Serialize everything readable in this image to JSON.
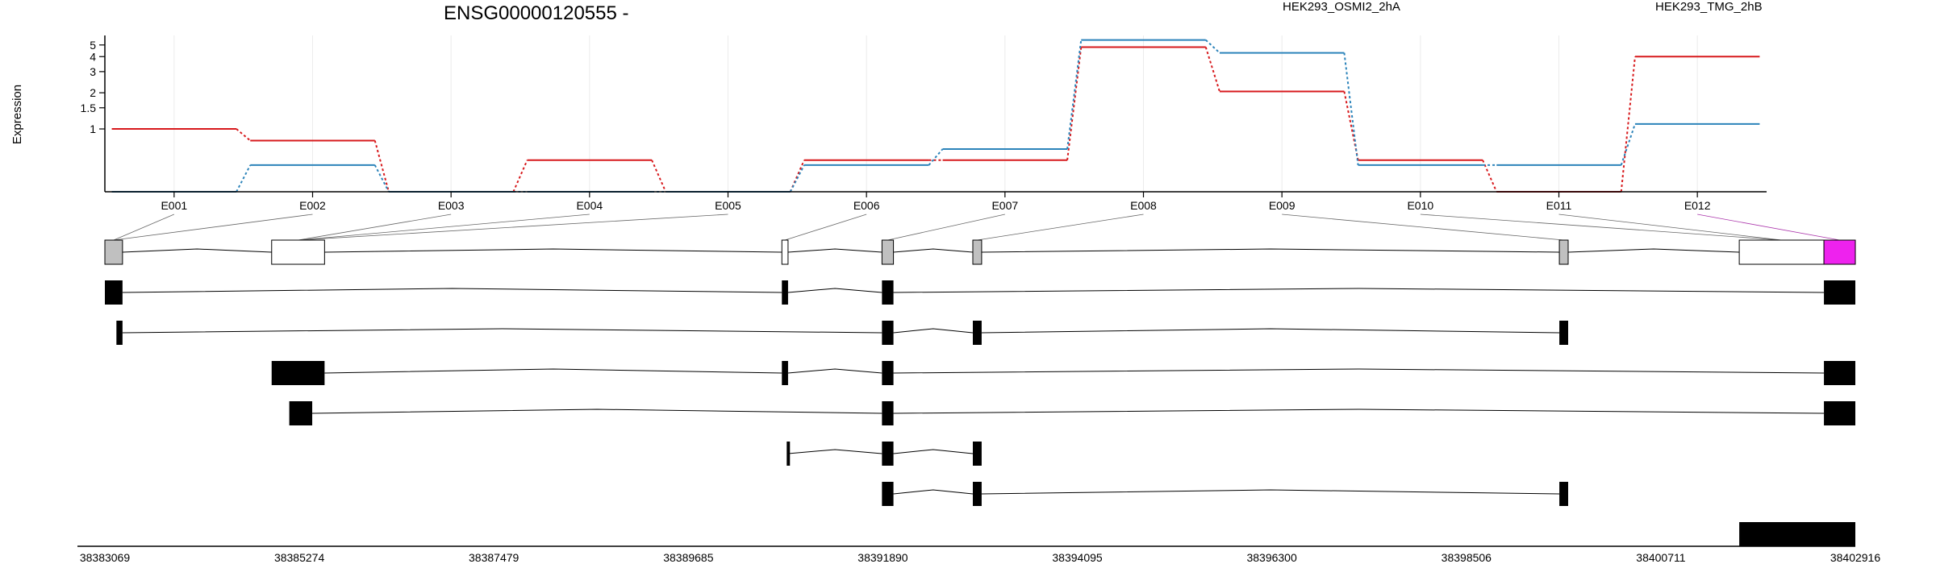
{
  "chart_data": {
    "type": "line",
    "title": "ENSG00000120555 -",
    "ylabel": "Expression",
    "y_scale": "log",
    "ylim": [
      0.3,
      6
    ],
    "y_ticks": [
      {
        "value": 1,
        "label": "1"
      },
      {
        "value": 1.5,
        "label": "1.5"
      },
      {
        "value": 2,
        "label": "2"
      },
      {
        "value": 3,
        "label": "3"
      },
      {
        "value": 4,
        "label": "4"
      },
      {
        "value": 5,
        "label": "5"
      }
    ],
    "categories": [
      "E001",
      "E002",
      "E003",
      "E004",
      "E005",
      "E006",
      "E007",
      "E008",
      "E009",
      "E010",
      "E011",
      "E012"
    ],
    "series": [
      {
        "name": "HEK293_OSMI2_2hA",
        "color": "#d7191c",
        "values": [
          1.0,
          0.8,
          0.3,
          0.55,
          0.3,
          0.55,
          0.55,
          4.8,
          2.05,
          0.55,
          0.3,
          4.0
        ]
      },
      {
        "name": "HEK293_TMG_2hB",
        "color": "#2b83ba",
        "values": [
          0.3,
          0.5,
          0.3,
          0.3,
          0.3,
          0.5,
          0.68,
          5.5,
          4.3,
          0.5,
          0.5,
          1.1
        ]
      }
    ],
    "grid": true,
    "legend_position": "top",
    "gene_structure": {
      "coordinate_range": [
        38383069,
        38402916
      ],
      "coordinate_ticks": [
        "38383069",
        "38385274",
        "38387479",
        "38389685",
        "38391890",
        "38394095",
        "38396300",
        "38398506",
        "38400711",
        "38402916"
      ],
      "exon_colors": {
        "default": "#ffffff",
        "expressed": "#c0c0c0",
        "highlighted": "#ee22ee",
        "transcript": "#000000"
      },
      "exon_bins": [
        {
          "id": "E001",
          "start": 38383069,
          "end": 38383269,
          "fill": "expressed"
        },
        {
          "id": "E002",
          "start": 38384960,
          "end": 38385560,
          "fill": "default"
        },
        {
          "id": "E003",
          "start": 38390745,
          "end": 38390815,
          "fill": "default"
        },
        {
          "id": "E004",
          "start": 38391880,
          "end": 38392010,
          "fill": "expressed"
        },
        {
          "id": "E005",
          "start": 38392910,
          "end": 38393010,
          "fill": "expressed"
        },
        {
          "id": "E006",
          "start": 38399560,
          "end": 38399660,
          "fill": "expressed"
        },
        {
          "id": "E007",
          "start": 38401600,
          "end": 38402560,
          "fill": "default"
        },
        {
          "id": "E008",
          "start": 38402560,
          "end": 38402916,
          "fill": "highlighted"
        }
      ],
      "transcripts": [
        {
          "exons": [
            [
              38383069,
              38383269
            ],
            [
              38390745,
              38390815
            ],
            [
              38391880,
              38392010
            ],
            [
              38402560,
              38402916
            ]
          ]
        },
        {
          "exons": [
            [
              38383200,
              38383269
            ],
            [
              38391880,
              38392010
            ],
            [
              38392910,
              38393010
            ],
            [
              38399560,
              38399660
            ]
          ]
        },
        {
          "exons": [
            [
              38384960,
              38385560
            ],
            [
              38390745,
              38390815
            ],
            [
              38391880,
              38392010
            ],
            [
              38402560,
              38402916
            ]
          ]
        },
        {
          "exons": [
            [
              38385160,
              38385420
            ],
            [
              38391880,
              38392010
            ],
            [
              38402560,
              38402916
            ]
          ]
        },
        {
          "exons": [
            [
              38390800,
              38390815
            ],
            [
              38391880,
              38392010
            ],
            [
              38392910,
              38393010
            ]
          ]
        },
        {
          "exons": [
            [
              38391880,
              38392010
            ],
            [
              38392910,
              38393010
            ],
            [
              38399560,
              38399660
            ]
          ]
        },
        {
          "exons": [
            [
              38401600,
              38402916
            ]
          ]
        }
      ]
    }
  }
}
